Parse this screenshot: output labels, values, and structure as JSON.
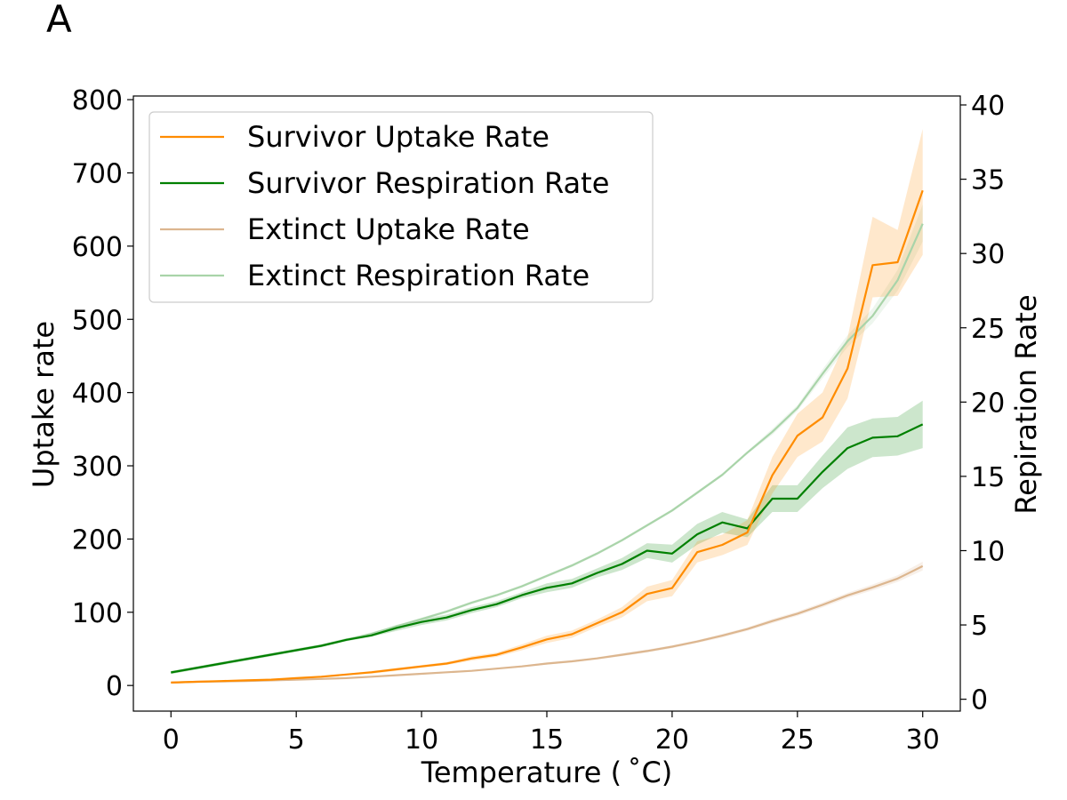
{
  "panel_label": "A",
  "colors": {
    "survivor_uptake": "#ff8c00",
    "survivor_respiration": "#008000",
    "extinct_uptake": "#dcb68f",
    "extinct_respiration": "#a9d4a9"
  },
  "chart_data": {
    "type": "line",
    "xlabel": "Temperature ($^\\circ$C)",
    "xlabel_display": "Temperature ( ˚C)",
    "ylabel_left": "Uptake rate",
    "ylabel_right": "Repiration Rate",
    "xlim": [
      -1.5,
      31.5
    ],
    "ylim_left": [
      -35,
      805
    ],
    "ylim_right": [
      -0.8,
      40.6
    ],
    "x_ticks": [
      0,
      5,
      10,
      15,
      20,
      25,
      30
    ],
    "y_ticks_left": [
      0,
      100,
      200,
      300,
      400,
      500,
      600,
      700,
      800
    ],
    "y_ticks_right": [
      0,
      5,
      10,
      15,
      20,
      25,
      30,
      35,
      40
    ],
    "legend_position": "top-left",
    "x": [
      0,
      1,
      2,
      3,
      4,
      5,
      6,
      7,
      8,
      9,
      10,
      11,
      12,
      13,
      14,
      15,
      16,
      17,
      18,
      19,
      20,
      21,
      22,
      23,
      24,
      25,
      26,
      27,
      28,
      29,
      30
    ],
    "series": [
      {
        "name": "Survivor Uptake Rate",
        "axis": "left",
        "color_key": "survivor_uptake",
        "values": [
          4,
          5,
          6,
          7,
          8,
          10,
          12,
          15,
          18,
          22,
          26,
          30,
          37,
          42,
          52,
          63,
          70,
          85,
          100,
          125,
          133,
          182,
          192,
          209,
          287,
          341,
          366,
          433,
          574,
          578,
          676
        ],
        "band_low": [
          3,
          4,
          5,
          6,
          7,
          9,
          11,
          14,
          16,
          20,
          24,
          28,
          34,
          39,
          48,
          58,
          65,
          80,
          93,
          115,
          122,
          168,
          178,
          192,
          262,
          312,
          333,
          392,
          530,
          532,
          588
        ],
        "band_high": [
          5,
          6,
          7,
          8,
          9,
          11,
          13,
          16,
          20,
          24,
          28,
          32,
          40,
          45,
          56,
          68,
          75,
          90,
          107,
          135,
          144,
          197,
          206,
          226,
          312,
          371,
          400,
          475,
          640,
          622,
          760
        ]
      },
      {
        "name": "Survivor Respiration Rate",
        "axis": "right",
        "color_key": "survivor_respiration",
        "values": [
          1.8,
          2.1,
          2.4,
          2.7,
          3.0,
          3.3,
          3.6,
          4.0,
          4.3,
          4.8,
          5.2,
          5.5,
          6.0,
          6.4,
          7.0,
          7.5,
          7.8,
          8.5,
          9.1,
          10.0,
          9.8,
          11.1,
          11.9,
          11.5,
          13.5,
          13.5,
          15.3,
          16.9,
          17.6,
          17.7,
          18.5
        ],
        "band_low": [
          1.7,
          2.0,
          2.3,
          2.6,
          2.9,
          3.2,
          3.5,
          3.9,
          4.2,
          4.6,
          5.0,
          5.3,
          5.8,
          6.2,
          6.8,
          7.2,
          7.5,
          8.2,
          8.7,
          9.5,
          9.2,
          10.4,
          11.2,
          10.9,
          12.6,
          12.6,
          14.2,
          15.5,
          16.3,
          16.4,
          16.9
        ],
        "band_high": [
          1.9,
          2.2,
          2.5,
          2.8,
          3.1,
          3.4,
          3.7,
          4.1,
          4.4,
          5.0,
          5.4,
          5.7,
          6.2,
          6.6,
          7.2,
          7.8,
          8.1,
          8.8,
          9.5,
          10.5,
          10.4,
          11.8,
          12.6,
          12.1,
          14.4,
          14.4,
          16.4,
          18.3,
          18.9,
          19.0,
          20.1
        ]
      },
      {
        "name": "Extinct Uptake Rate",
        "axis": "left",
        "color_key": "extinct_uptake",
        "values": [
          4,
          5,
          5.5,
          6,
          7,
          8,
          9,
          10,
          12,
          14,
          16,
          18,
          20,
          23,
          26,
          30,
          33,
          37,
          42,
          47,
          53,
          60,
          68,
          77,
          88,
          98,
          110,
          123,
          134,
          146,
          163
        ],
        "band_low": [
          3.5,
          4.5,
          5,
          5.5,
          6.5,
          7.5,
          8.5,
          9.5,
          11,
          13,
          15,
          17,
          19,
          22,
          25,
          28.5,
          31.5,
          35.5,
          40,
          45,
          51,
          58,
          65.5,
          74.5,
          85,
          95,
          106.5,
          119.5,
          130,
          141.5,
          157
        ],
        "band_high": [
          4.5,
          5.5,
          6,
          6.5,
          7.5,
          8.5,
          9.5,
          10.5,
          13,
          15,
          17,
          19,
          21,
          24,
          27,
          31.5,
          34.5,
          38.5,
          44,
          49,
          55,
          62,
          70.5,
          79.5,
          91,
          101,
          113.5,
          126.5,
          138,
          150.5,
          169
        ]
      },
      {
        "name": "Extinct Respiration Rate",
        "axis": "right",
        "color_key": "extinct_respiration",
        "values": [
          1.8,
          2.1,
          2.4,
          2.7,
          3.0,
          3.3,
          3.6,
          4.0,
          4.4,
          4.9,
          5.4,
          5.9,
          6.5,
          7.0,
          7.6,
          8.3,
          9.0,
          9.8,
          10.7,
          11.7,
          12.7,
          13.9,
          15.1,
          16.6,
          18.0,
          19.6,
          21.9,
          24.1,
          25.8,
          28.2,
          32.0
        ],
        "band_low": [
          1.7,
          2.0,
          2.3,
          2.6,
          2.9,
          3.2,
          3.5,
          3.9,
          4.3,
          4.8,
          5.3,
          5.8,
          6.4,
          6.9,
          7.5,
          8.2,
          8.9,
          9.7,
          10.6,
          11.6,
          12.6,
          13.8,
          15.0,
          16.5,
          17.8,
          19.4,
          21.6,
          23.7,
          25.3,
          27.5,
          30.8
        ],
        "band_high": [
          1.9,
          2.2,
          2.5,
          2.8,
          3.1,
          3.4,
          3.7,
          4.1,
          4.5,
          5.0,
          5.5,
          6.0,
          6.6,
          7.1,
          7.7,
          8.4,
          9.1,
          9.9,
          10.8,
          11.8,
          12.8,
          14.0,
          15.2,
          16.7,
          18.2,
          19.8,
          22.2,
          24.5,
          26.3,
          28.9,
          33.3
        ]
      }
    ]
  }
}
